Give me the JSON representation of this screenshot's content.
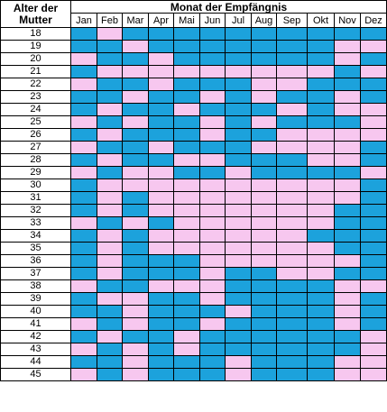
{
  "header": {
    "corner_label": "Alter der Mutter",
    "title": "Monat der Empfängnis"
  },
  "months": [
    "Jan",
    "Feb",
    "Mar",
    "Apr",
    "Mai",
    "Jun",
    "Jul",
    "Aug",
    "Sep",
    "Okt",
    "Nov",
    "Dez"
  ],
  "colors": {
    "boy": "#1ca2dc",
    "girl": "#f7c7ef"
  },
  "rows": [
    {
      "age": "18",
      "cells": "bpbbbbbbbbbb"
    },
    {
      "age": "19",
      "cells": "bbpbbbbbbbpp"
    },
    {
      "age": "20",
      "cells": "pbbpbbbbbbpb"
    },
    {
      "age": "21",
      "cells": "bpppppppppbp"
    },
    {
      "age": "22",
      "cells": "pbbpbbbppbbb"
    },
    {
      "age": "23",
      "cells": "bbpbbpbpbbpb"
    },
    {
      "age": "24",
      "cells": "bpbbpbbbpbpp"
    },
    {
      "age": "25",
      "cells": "pbpbbpbpbbbp"
    },
    {
      "age": "26",
      "cells": "bpbbbpbbpppp"
    },
    {
      "age": "27",
      "cells": "pbbpbbbppppb"
    },
    {
      "age": "28",
      "cells": "bpbbppbbbppb"
    },
    {
      "age": "29",
      "cells": "pbppbbpbbbbp"
    },
    {
      "age": "30",
      "cells": "bppppppppppb"
    },
    {
      "age": "31",
      "cells": "bpbppppppppb"
    },
    {
      "age": "32",
      "cells": "bpbpppppppbb"
    },
    {
      "age": "33",
      "cells": "pbpbppppppbb"
    },
    {
      "age": "34",
      "cells": "bpbppppppbbb"
    },
    {
      "age": "35",
      "cells": "bpbpppppppbb"
    },
    {
      "age": "36",
      "cells": "bpbbbppppppb"
    },
    {
      "age": "37",
      "cells": "bpbbbpbbppbb"
    },
    {
      "age": "38",
      "cells": "pbbpppbbbbpp"
    },
    {
      "age": "39",
      "cells": "bppbbpbbbbpb"
    },
    {
      "age": "40",
      "cells": "bbpbbbpbbbpb"
    },
    {
      "age": "41",
      "cells": "pbpbbpbbbbpb"
    },
    {
      "age": "42",
      "cells": "bpbbpbbbbbbp"
    },
    {
      "age": "43",
      "cells": "pbpbpbbbbbbp"
    },
    {
      "age": "44",
      "cells": "bbpbbbpbbbpp"
    },
    {
      "age": "45",
      "cells": "pbpbbbpbbbpp"
    }
  ]
}
